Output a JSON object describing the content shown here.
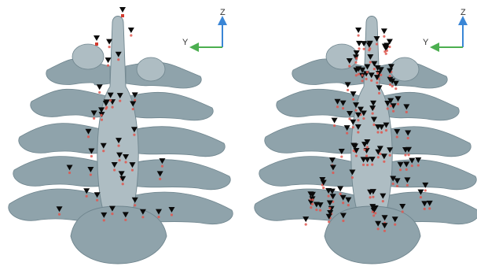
{
  "panels": [
    {
      "id": "left",
      "axes": {
        "z_label": "Z",
        "y_label": "Y"
      },
      "landmark_count": 40
    },
    {
      "id": "right",
      "axes": {
        "z_label": "Z",
        "y_label": "Y"
      },
      "landmark_count": 120
    }
  ],
  "colors": {
    "bone": "#8fa3ab",
    "bone_dark": "#6f858e",
    "bone_light": "#aebdc3",
    "marker": "#0a0a0a",
    "marker_tip": "#e0574f",
    "z_axis": "#3a86d6",
    "y_axis": "#4caf50"
  }
}
